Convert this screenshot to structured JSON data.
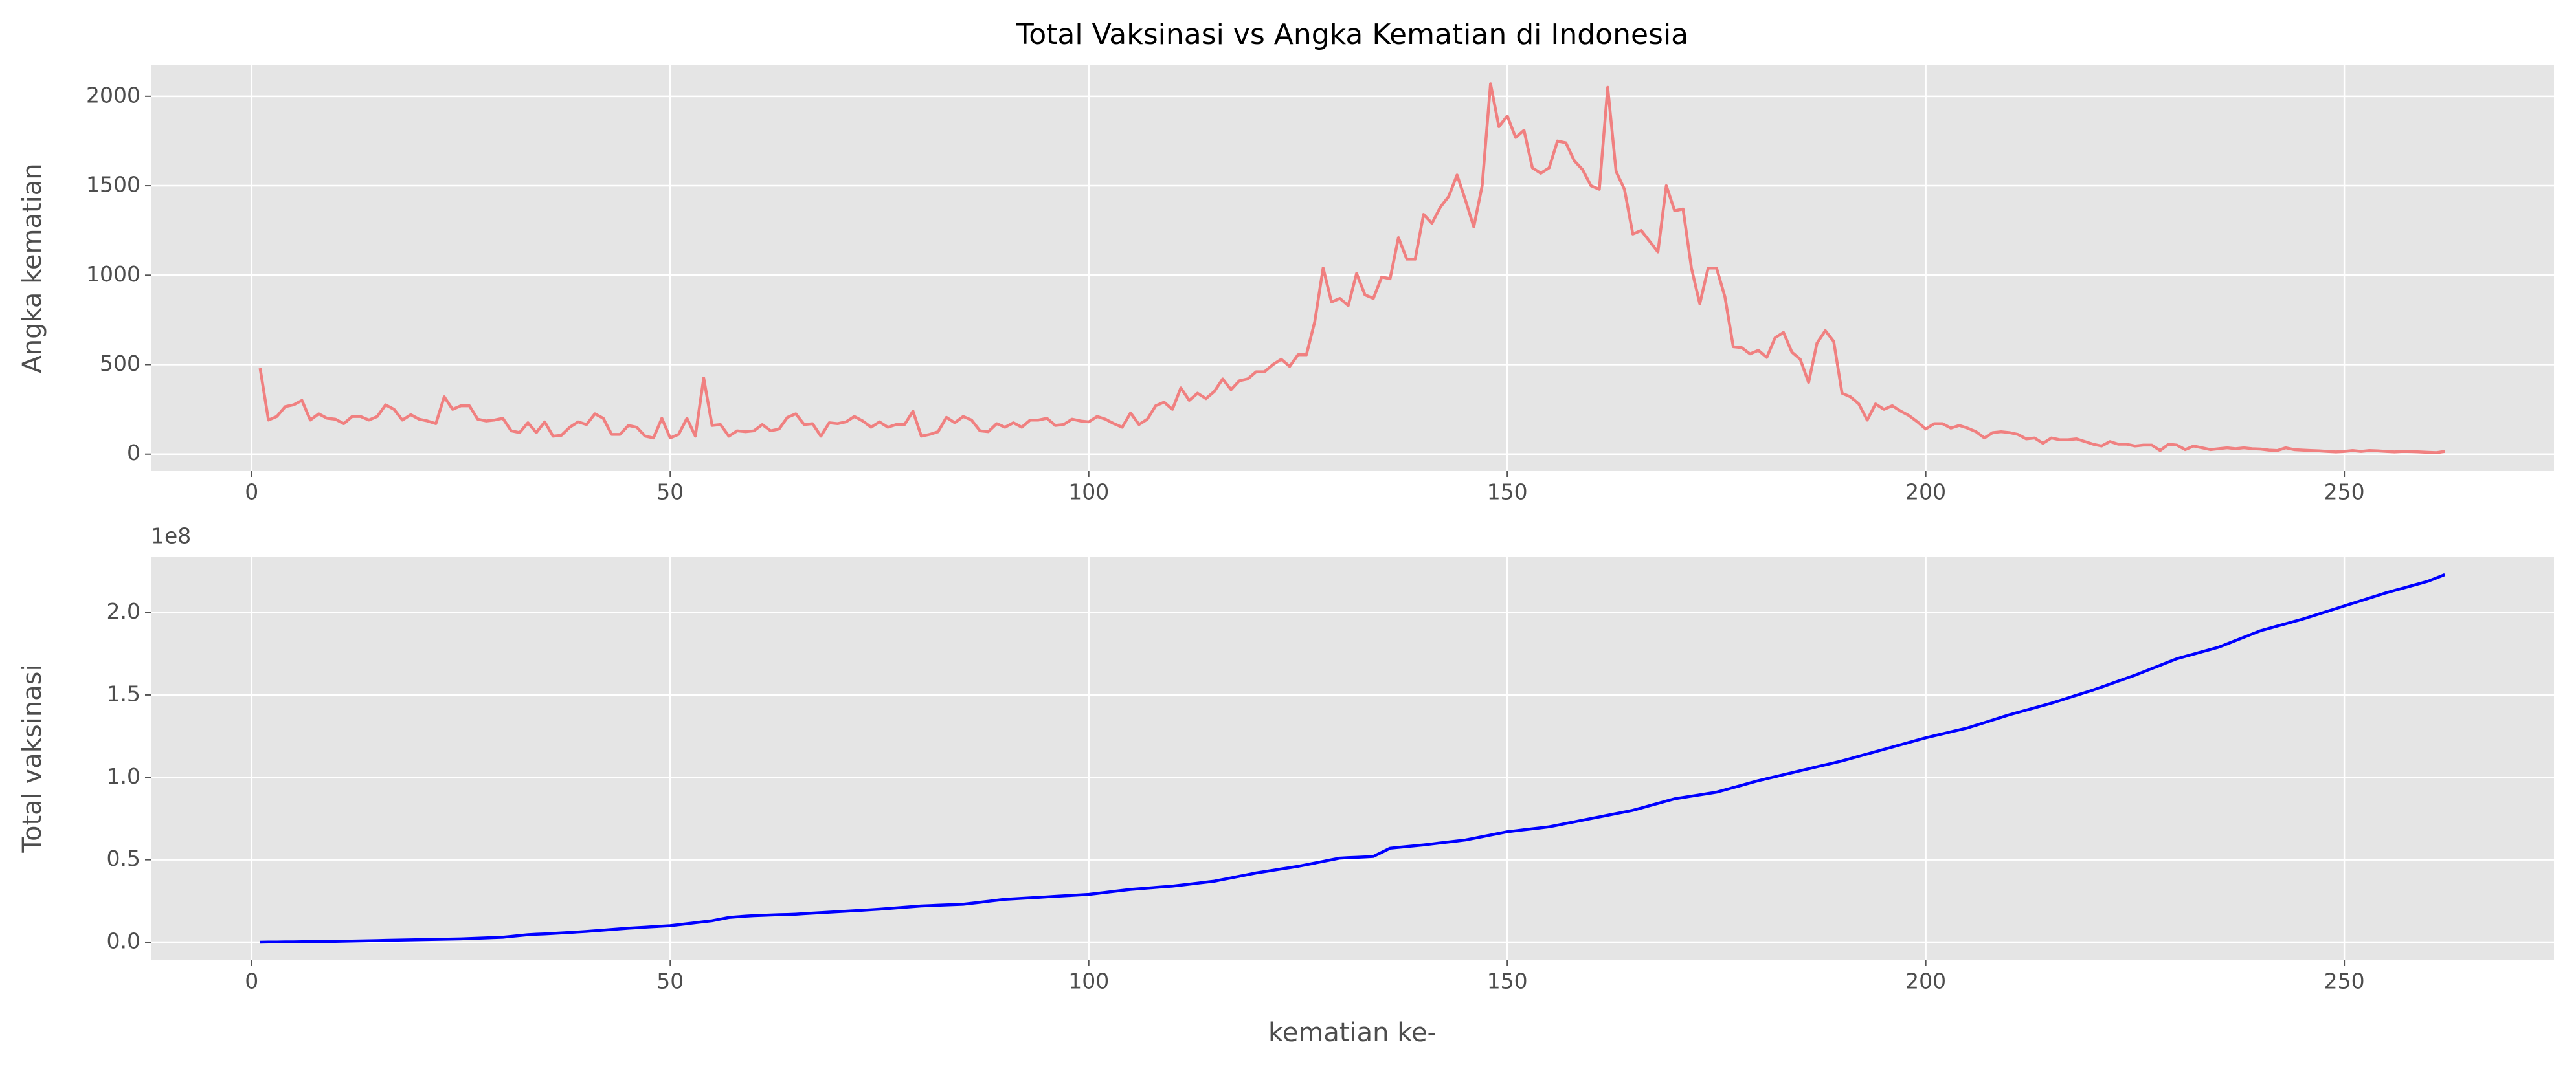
{
  "chart_data": [
    {
      "type": "line",
      "title": "Total Vaksinasi vs Angka Kematian di Indonesia",
      "ylabel": "Angka kematian",
      "x": [
        1,
        2,
        3,
        4,
        5,
        6,
        7,
        8,
        9,
        10,
        11,
        12,
        13,
        14,
        15,
        16,
        17,
        18,
        19,
        20,
        21,
        22,
        23,
        24,
        25,
        26,
        27,
        28,
        29,
        30,
        31,
        32,
        33,
        34,
        35,
        36,
        37,
        38,
        39,
        40,
        41,
        42,
        43,
        44,
        45,
        46,
        47,
        48,
        49,
        50,
        51,
        52,
        53,
        54,
        55,
        56,
        57,
        58,
        59,
        60,
        61,
        62,
        63,
        64,
        65,
        66,
        67,
        68,
        69,
        70,
        71,
        72,
        73,
        74,
        75,
        76,
        77,
        78,
        79,
        80,
        81,
        82,
        83,
        84,
        85,
        86,
        87,
        88,
        89,
        90,
        91,
        92,
        93,
        94,
        95,
        96,
        97,
        98,
        99,
        100,
        101,
        102,
        103,
        104,
        105,
        106,
        107,
        108,
        109,
        110,
        111,
        112,
        113,
        114,
        115,
        116,
        117,
        118,
        119,
        120,
        121,
        122,
        123,
        124,
        125,
        126,
        127,
        128,
        129,
        130,
        131,
        132,
        133,
        134,
        135,
        136,
        137,
        138,
        139,
        140,
        141,
        142,
        143,
        144,
        145,
        146,
        147,
        148,
        149,
        150,
        151,
        152,
        153,
        154,
        155,
        156,
        157,
        158,
        159,
        160,
        161,
        162,
        163,
        164,
        165,
        166,
        167,
        168,
        169,
        170,
        171,
        172,
        173,
        174,
        175,
        176,
        177,
        178,
        179,
        180,
        181,
        182,
        183,
        184,
        185,
        186,
        187,
        188,
        189,
        190,
        191,
        192,
        193,
        194,
        195,
        196,
        197,
        198,
        199,
        200,
        201,
        202,
        203,
        204,
        205,
        206,
        207,
        208,
        209,
        210,
        211,
        212,
        213,
        214,
        215,
        216,
        217,
        218,
        219,
        220,
        221,
        222,
        223,
        224,
        225,
        226,
        227,
        228,
        229,
        230,
        231,
        232,
        233,
        234,
        235,
        236,
        237,
        238,
        239,
        240,
        241,
        242,
        243,
        244,
        245,
        246,
        247,
        248,
        249,
        250,
        251,
        252,
        253,
        254,
        255,
        256,
        257,
        258,
        259,
        260,
        261,
        262
      ],
      "series": [
        {
          "color": "#f08080",
          "values": [
            480,
            190,
            210,
            265,
            275,
            300,
            190,
            225,
            200,
            195,
            170,
            210,
            210,
            190,
            210,
            275,
            250,
            190,
            220,
            195,
            185,
            170,
            320,
            250,
            270,
            270,
            195,
            185,
            190,
            200,
            130,
            120,
            175,
            120,
            180,
            100,
            105,
            150,
            180,
            165,
            225,
            200,
            110,
            110,
            160,
            150,
            100,
            90,
            200,
            90,
            110,
            200,
            100,
            425,
            160,
            165,
            100,
            130,
            125,
            130,
            165,
            130,
            140,
            205,
            225,
            165,
            170,
            100,
            175,
            170,
            180,
            210,
            185,
            150,
            180,
            150,
            165,
            165,
            240,
            100,
            110,
            125,
            205,
            175,
            210,
            190,
            130,
            125,
            170,
            150,
            175,
            150,
            190,
            190,
            200,
            160,
            165,
            195,
            185,
            180,
            210,
            195,
            170,
            150,
            230,
            165,
            195,
            270,
            290,
            250,
            370,
            300,
            340,
            310,
            350,
            420,
            360,
            410,
            420,
            460,
            460,
            500,
            530,
            490,
            555,
            555,
            740,
            1040,
            850,
            870,
            830,
            1010,
            890,
            870,
            990,
            980,
            1210,
            1090,
            1090,
            1340,
            1290,
            1380,
            1440,
            1560,
            1420,
            1270,
            1500,
            2070,
            1830,
            1890,
            1770,
            1810,
            1600,
            1570,
            1600,
            1750,
            1740,
            1640,
            1590,
            1500,
            1480,
            2050,
            1580,
            1480,
            1230,
            1250,
            1190,
            1130,
            1500,
            1360,
            1370,
            1040,
            840,
            1040,
            1040,
            880,
            600,
            595,
            560,
            580,
            540,
            650,
            680,
            570,
            530,
            400,
            620,
            690,
            630,
            340,
            320,
            280,
            190,
            280,
            250,
            270,
            240,
            215,
            180,
            140,
            170,
            170,
            145,
            160,
            145,
            125,
            90,
            120,
            125,
            120,
            110,
            85,
            90,
            60,
            90,
            80,
            80,
            85,
            70,
            55,
            45,
            70,
            55,
            55,
            45,
            50,
            50,
            20,
            55,
            50,
            25,
            45,
            35,
            25,
            30,
            35,
            30,
            35,
            30,
            28,
            22,
            20,
            35,
            25,
            22,
            20,
            18,
            15,
            12,
            15,
            20,
            15,
            20,
            18,
            15,
            12,
            15,
            14,
            12,
            10,
            8,
            15
          ]
        }
      ],
      "xlim": [
        -12.05,
        275.05
      ],
      "ylim": [
        -95,
        2173
      ],
      "xticks": [
        0,
        50,
        100,
        150,
        200,
        250
      ],
      "yticks": [
        0,
        500,
        1000,
        1500,
        2000
      ],
      "grid": true
    },
    {
      "type": "line",
      "xlabel": "kematian ke-",
      "ylabel": "Total vaksinasi",
      "offset_label": "1e8",
      "x": [
        1,
        2,
        3,
        4,
        5,
        6,
        7,
        8,
        9,
        10,
        11,
        12,
        13,
        14,
        15,
        16,
        17,
        18,
        19,
        20,
        21,
        22,
        23,
        24,
        25,
        26,
        27,
        28,
        29,
        30,
        31,
        32,
        33,
        34,
        35,
        36,
        37,
        38,
        39,
        40,
        41,
        42,
        43,
        44,
        45,
        46,
        47,
        48,
        49,
        50,
        51,
        52,
        53,
        54,
        55,
        56,
        57,
        58,
        59,
        60,
        61,
        62,
        63,
        64,
        65,
        66,
        67,
        68,
        69,
        70,
        71,
        72,
        73,
        74,
        75,
        76,
        77,
        78,
        79,
        80,
        81,
        82,
        83,
        84,
        85,
        86,
        87,
        88,
        89,
        90,
        91,
        92,
        93,
        94,
        95,
        96,
        97,
        98,
        99,
        100,
        101,
        102,
        103,
        104,
        105,
        106,
        107,
        108,
        109,
        110,
        111,
        112,
        113,
        114,
        115,
        116,
        117,
        118,
        119,
        120,
        121,
        122,
        123,
        124,
        125,
        126,
        127,
        128,
        129,
        130,
        131,
        132,
        133,
        134,
        135,
        136,
        137,
        138,
        139,
        140,
        141,
        142,
        143,
        144,
        145,
        146,
        147,
        148,
        149,
        150,
        151,
        152,
        153,
        154,
        155,
        156,
        157,
        158,
        159,
        160,
        161,
        162,
        163,
        164,
        165,
        166,
        167,
        168,
        169,
        170,
        171,
        172,
        173,
        174,
        175,
        176,
        177,
        178,
        179,
        180,
        181,
        182,
        183,
        184,
        185,
        186,
        187,
        188,
        189,
        190,
        191,
        192,
        193,
        194,
        195,
        196,
        197,
        198,
        199,
        200,
        201,
        202,
        203,
        204,
        205,
        206,
        207,
        208,
        209,
        210,
        211,
        212,
        213,
        214,
        215,
        216,
        217,
        218,
        219,
        220,
        221,
        222,
        223,
        224,
        225,
        226,
        227,
        228,
        229,
        230,
        231,
        232,
        233,
        234,
        235,
        236,
        237,
        238,
        239,
        240,
        241,
        242,
        243,
        244,
        245,
        246,
        247,
        248,
        249,
        250,
        251,
        252,
        253,
        254,
        255,
        256,
        257,
        258,
        259,
        260,
        261,
        262
      ],
      "series": [
        {
          "color": "#0000ff",
          "values": [
            0,
            0.001,
            0.001,
            0.002,
            0.002,
            0.003,
            0.003,
            0.004,
            0.004,
            0.005,
            0.006,
            0.007,
            0.008,
            0.009,
            0.01,
            0.011,
            0.012,
            0.013,
            0.014,
            0.015,
            0.016,
            0.017,
            0.018,
            0.019,
            0.02,
            0.022,
            0.024,
            0.026,
            0.028,
            0.03,
            0.035,
            0.04,
            0.045,
            0.048,
            0.05,
            0.053,
            0.056,
            0.059,
            0.062,
            0.065,
            0.069,
            0.073,
            0.077,
            0.081,
            0.085,
            0.088,
            0.091,
            0.094,
            0.097,
            0.1,
            0.106,
            0.112,
            0.118,
            0.124,
            0.13,
            0.14,
            0.15,
            0.154,
            0.158,
            0.161,
            0.163,
            0.165,
            0.167,
            0.168,
            0.17,
            0.173,
            0.176,
            0.179,
            0.182,
            0.185,
            0.188,
            0.191,
            0.194,
            0.197,
            0.2,
            0.204,
            0.208,
            0.212,
            0.216,
            0.22,
            0.222,
            0.224,
            0.226,
            0.228,
            0.23,
            0.236,
            0.242,
            0.248,
            0.254,
            0.26,
            0.263,
            0.266,
            0.269,
            0.272,
            0.275,
            0.278,
            0.281,
            0.284,
            0.287,
            0.29,
            0.296,
            0.302,
            0.308,
            0.314,
            0.32,
            0.324,
            0.328,
            0.332,
            0.336,
            0.34,
            0.346,
            0.352,
            0.358,
            0.364,
            0.37,
            0.38,
            0.39,
            0.4,
            0.41,
            0.42,
            0.428,
            0.436,
            0.444,
            0.452,
            0.46,
            0.47,
            0.48,
            0.49,
            0.5,
            0.51,
            0.513,
            0.515,
            0.517,
            0.52,
            0.545,
            0.57,
            0.575,
            0.58,
            0.585,
            0.59,
            0.596,
            0.602,
            0.608,
            0.614,
            0.62,
            0.63,
            0.64,
            0.65,
            0.66,
            0.67,
            0.676,
            0.682,
            0.688,
            0.694,
            0.7,
            0.71,
            0.72,
            0.73,
            0.74,
            0.75,
            0.76,
            0.77,
            0.78,
            0.79,
            0.8,
            0.814,
            0.828,
            0.842,
            0.856,
            0.87,
            0.878,
            0.886,
            0.894,
            0.902,
            0.91,
            0.924,
            0.938,
            0.952,
            0.966,
            0.98,
            0.992,
            1.004,
            1.016,
            1.028,
            1.04,
            1.052,
            1.064,
            1.076,
            1.088,
            1.1,
            1.114,
            1.128,
            1.142,
            1.156,
            1.17,
            1.184,
            1.198,
            1.212,
            1.226,
            1.24,
            1.252,
            1.264,
            1.276,
            1.288,
            1.3,
            1.316,
            1.332,
            1.348,
            1.364,
            1.38,
            1.394,
            1.408,
            1.422,
            1.436,
            1.45,
            1.466,
            1.482,
            1.498,
            1.514,
            1.53,
            1.548,
            1.566,
            1.584,
            1.602,
            1.62,
            1.64,
            1.66,
            1.68,
            1.7,
            1.72,
            1.734,
            1.748,
            1.762,
            1.776,
            1.79,
            1.81,
            1.83,
            1.85,
            1.87,
            1.89,
            1.904,
            1.918,
            1.932,
            1.946,
            1.96,
            1.976,
            1.992,
            2.008,
            2.024,
            2.04,
            2.056,
            2.072,
            2.088,
            2.104,
            2.12,
            2.134,
            2.148,
            2.162,
            2.176,
            2.19,
            2.21,
            2.23
          ]
        }
      ],
      "xlim": [
        -12.05,
        275.05
      ],
      "ylim": [
        -0.11,
        2.34
      ],
      "xticks": [
        0,
        50,
        100,
        150,
        200,
        250
      ],
      "yticks": [
        {
          "value": 0,
          "label": "0.0"
        },
        0.5,
        {
          "value": 1,
          "label": "1.0"
        },
        1.5,
        {
          "value": 2,
          "label": "2.0"
        }
      ],
      "grid": true
    }
  ]
}
